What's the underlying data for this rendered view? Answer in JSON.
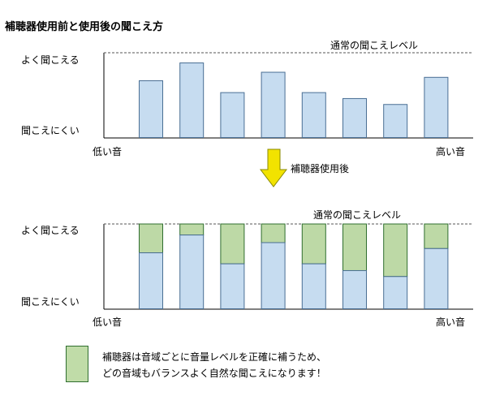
{
  "title": "補聴器使用前と使用後の聞こえ方",
  "normal_level_label": "通常の聞こえレベル",
  "y_labels": {
    "good": "よく聞こえる",
    "poor": "聞こえにくい"
  },
  "x_labels": {
    "low": "低い音",
    "high": "高い音"
  },
  "arrow_label": "補聴器使用後",
  "legend": {
    "line1": "補聴器は音域ごとに音量レベルを正確に補うため、",
    "line2": "どの音域もバランスよく自然な聞こえになります！"
  },
  "colors": {
    "blue": "#c6dcf0",
    "green": "#bdd9a6",
    "arrow": "#f2e300"
  },
  "chart_data": [
    {
      "type": "bar",
      "name": "before",
      "ylim": [
        0,
        1
      ],
      "values": [
        0.67,
        0.88,
        0.53,
        0.77,
        0.53,
        0.46,
        0.39,
        0.71
      ]
    },
    {
      "type": "bar",
      "name": "after",
      "ylim": [
        0,
        1
      ],
      "series": [
        {
          "values": [
            0.66,
            0.87,
            0.53,
            0.78,
            0.53,
            0.45,
            0.38,
            0.71
          ]
        },
        {
          "values": [
            1,
            1,
            1,
            1,
            1,
            1,
            1,
            1
          ]
        }
      ]
    }
  ]
}
